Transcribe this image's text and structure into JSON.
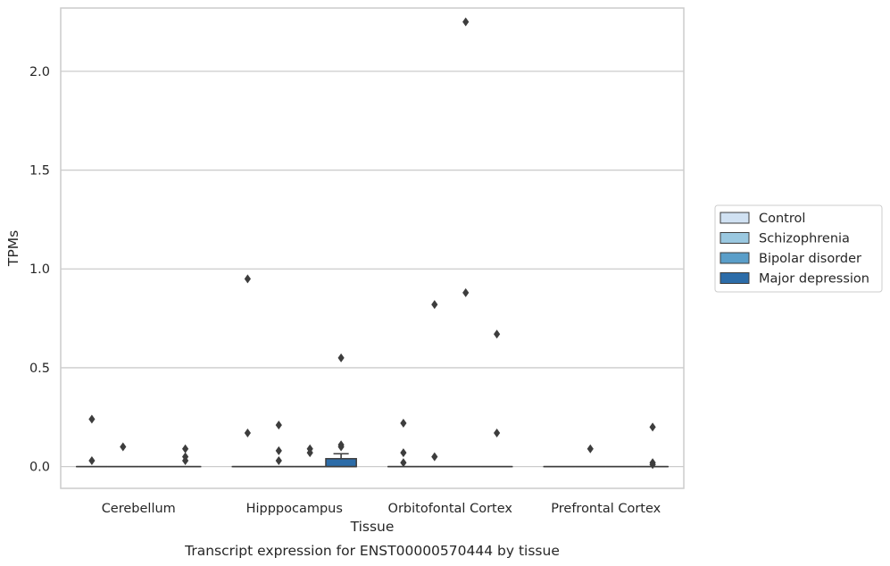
{
  "chart_data": {
    "type": "boxplot",
    "title": "Transcript expression for ENST00000570444 by tissue",
    "xlabel": "Tissue",
    "ylabel": "TPMs",
    "ylim": [
      -0.11,
      2.32
    ],
    "yticks": [
      0.0,
      0.5,
      1.0,
      1.5,
      2.0
    ],
    "ytick_labels": [
      "0.0",
      "0.5",
      "1.0",
      "1.5",
      "2.0"
    ],
    "grid": "horizontal",
    "legend_position": "right",
    "categories": [
      "Cerebellum",
      "Hipppocampus",
      "Orbitofontal Cortex",
      "Prefrontal Cortex"
    ],
    "series": [
      {
        "name": "Control",
        "color": "#d0e1f2",
        "boxes": [
          {
            "q1": 0,
            "median": 0,
            "q3": 0,
            "whisker_low": 0,
            "whisker_high": 0,
            "outliers": [
              0.24,
              0.03
            ]
          },
          {
            "q1": 0,
            "median": 0,
            "q3": 0,
            "whisker_low": 0,
            "whisker_high": 0,
            "outliers": [
              0.95,
              0.17
            ]
          },
          {
            "q1": 0,
            "median": 0,
            "q3": 0,
            "whisker_low": 0,
            "whisker_high": 0,
            "outliers": [
              0.22,
              0.07,
              0.02
            ]
          },
          {
            "q1": 0,
            "median": 0,
            "q3": 0,
            "whisker_low": 0,
            "whisker_high": 0,
            "outliers": []
          }
        ]
      },
      {
        "name": "Schizophrenia",
        "color": "#9ac8e0",
        "boxes": [
          {
            "q1": 0,
            "median": 0,
            "q3": 0,
            "whisker_low": 0,
            "whisker_high": 0,
            "outliers": [
              0.1
            ]
          },
          {
            "q1": 0,
            "median": 0,
            "q3": 0,
            "whisker_low": 0,
            "whisker_high": 0,
            "outliers": [
              0.21,
              0.08,
              0.03
            ]
          },
          {
            "q1": 0,
            "median": 0,
            "q3": 0,
            "whisker_low": 0,
            "whisker_high": 0,
            "outliers": [
              0.82,
              0.05
            ]
          },
          {
            "q1": 0,
            "median": 0,
            "q3": 0,
            "whisker_low": 0,
            "whisker_high": 0,
            "outliers": [
              0.09
            ]
          }
        ]
      },
      {
        "name": "Bipolar disorder",
        "color": "#5a9ec9",
        "boxes": [
          {
            "q1": 0,
            "median": 0,
            "q3": 0,
            "whisker_low": 0,
            "whisker_high": 0,
            "outliers": []
          },
          {
            "q1": 0,
            "median": 0,
            "q3": 0,
            "whisker_low": 0,
            "whisker_high": 0,
            "outliers": [
              0.09,
              0.07
            ]
          },
          {
            "q1": 0,
            "median": 0,
            "q3": 0,
            "whisker_low": 0,
            "whisker_high": 0,
            "outliers": [
              2.25,
              0.88
            ]
          },
          {
            "q1": 0,
            "median": 0,
            "q3": 0,
            "whisker_low": 0,
            "whisker_high": 0,
            "outliers": []
          }
        ]
      },
      {
        "name": "Major depression",
        "color": "#2c6ca8",
        "boxes": [
          {
            "q1": 0,
            "median": 0,
            "q3": 0,
            "whisker_low": 0,
            "whisker_high": 0,
            "outliers": [
              0.09,
              0.05,
              0.03
            ]
          },
          {
            "q1": 0,
            "median": 0,
            "q3": 0.04,
            "whisker_low": 0,
            "whisker_high": 0.065,
            "outliers": [
              0.55,
              0.11,
              0.1
            ]
          },
          {
            "q1": 0,
            "median": 0,
            "q3": 0,
            "whisker_low": 0,
            "whisker_high": 0,
            "outliers": [
              0.67,
              0.17
            ]
          },
          {
            "q1": 0,
            "median": 0,
            "q3": 0,
            "whisker_low": 0,
            "whisker_high": 0,
            "outliers": [
              0.2,
              0.02,
              0.01
            ]
          }
        ]
      }
    ]
  }
}
